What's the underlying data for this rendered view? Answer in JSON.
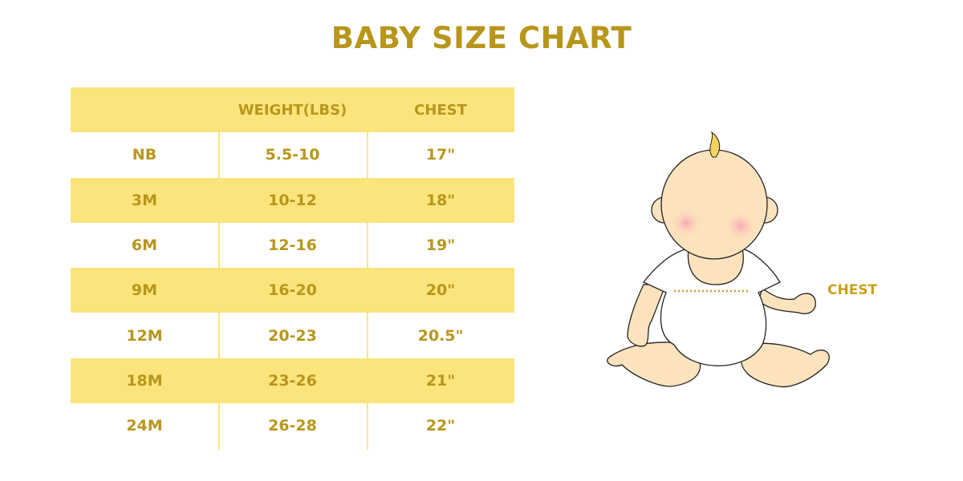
{
  "title": "BABY SIZE CHART",
  "table": {
    "headers": [
      "",
      "WEIGHT(LBS)",
      "CHEST"
    ],
    "rows": [
      [
        "NB",
        "5.5-10",
        "17\""
      ],
      [
        "3M",
        "10-12",
        "18\""
      ],
      [
        "6M",
        "12-16",
        "19\""
      ],
      [
        "9M",
        "16-20",
        "20\""
      ],
      [
        "12M",
        "20-23",
        "20.5\""
      ],
      [
        "18M",
        "23-26",
        "21\""
      ],
      [
        "24M",
        "26-28",
        "22\""
      ]
    ]
  },
  "illustration": {
    "chest_label": "CHEST"
  },
  "colors": {
    "text": "#b8961c",
    "row_shade": "#fbe47b",
    "skin": "#fde3bd"
  }
}
